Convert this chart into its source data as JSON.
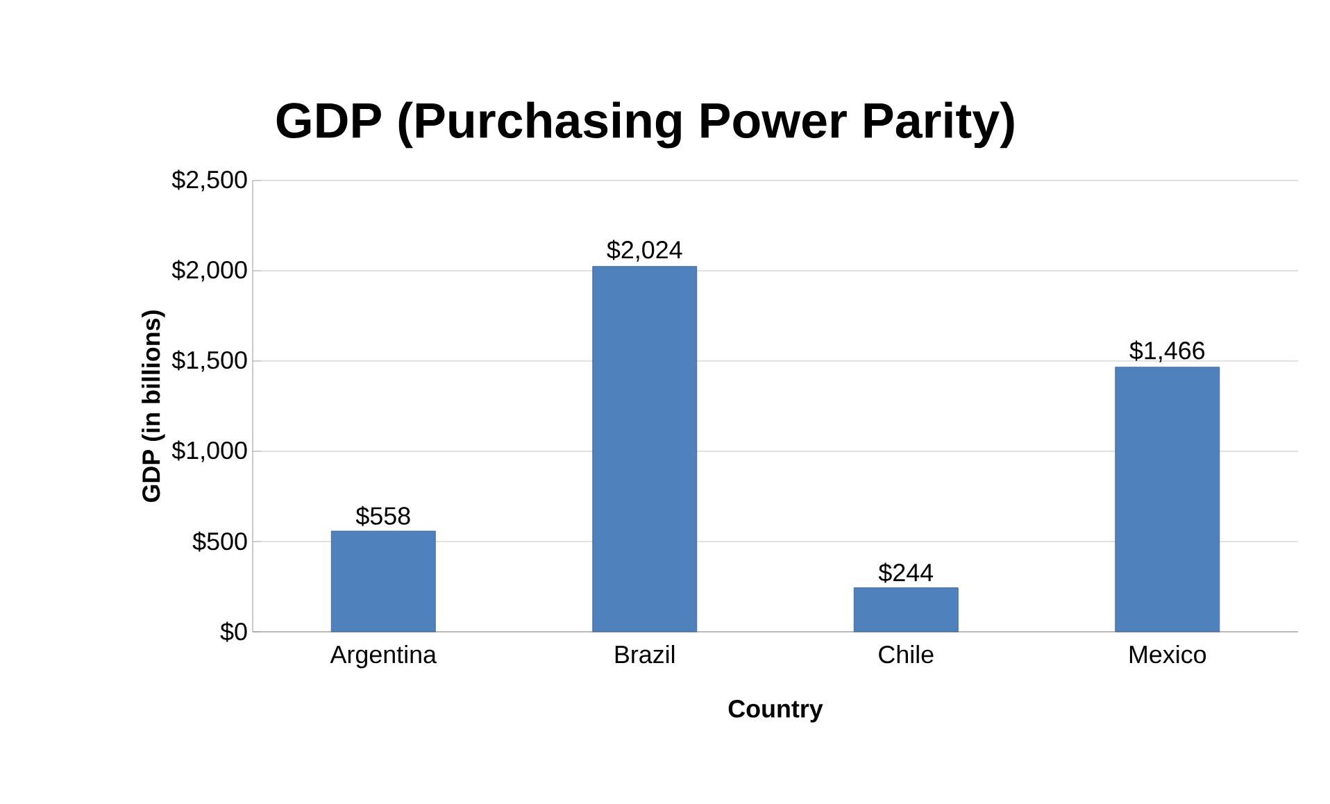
{
  "chart_data": {
    "type": "bar",
    "title": "GDP (Purchasing Power Parity)",
    "xlabel": "Country",
    "ylabel": "GDP (in billions)",
    "categories": [
      "Argentina",
      "Brazil",
      "Chile",
      "Mexico"
    ],
    "values": [
      558,
      2024,
      244,
      1466
    ],
    "value_labels": [
      "$558",
      "$2,024",
      "$244",
      "$1,466"
    ],
    "color": "#4f81bd",
    "ylim": [
      0,
      2500
    ],
    "yticks": [
      {
        "value": 0,
        "label": "$0"
      },
      {
        "value": 500,
        "label": "$500"
      },
      {
        "value": 1000,
        "label": "$1,000"
      },
      {
        "value": 1500,
        "label": "$1,500"
      },
      {
        "value": 2000,
        "label": "$2,000"
      },
      {
        "value": 2500,
        "label": "$2,500"
      }
    ],
    "grid": "y"
  }
}
